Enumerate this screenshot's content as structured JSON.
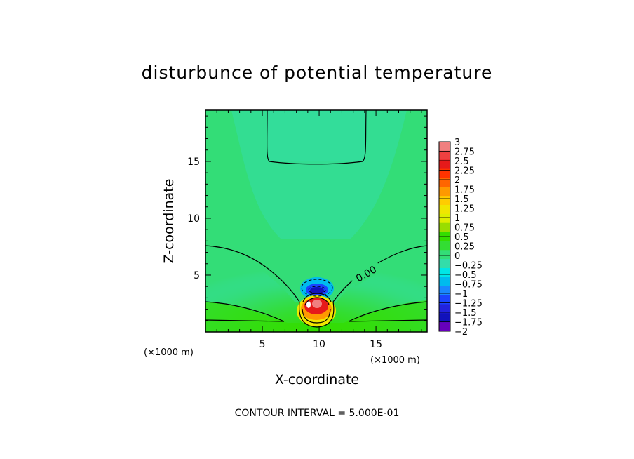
{
  "chart_data": {
    "type": "heatmap",
    "title": "disturbunce of potential temperature",
    "xlabel": "X-coordinate",
    "ylabel": "Z-coordinate",
    "x_unit": "(×1000 m)",
    "z_unit": "(×1000 m)",
    "xlim": [
      0,
      19.5
    ],
    "ylim": [
      0,
      19.5
    ],
    "x_ticks": [
      5,
      10,
      15
    ],
    "y_ticks": [
      5,
      10,
      15
    ],
    "contour_label": "0.00",
    "contour_interval_text": "CONTOUR INTERVAL = 5.000E-01",
    "colorbar": {
      "labels": [
        "3",
        "2.75",
        "2.5",
        "2.25",
        "2",
        "1.75",
        "1.5",
        "1.25",
        "1",
        "0.75",
        "0.5",
        "0.25",
        "0",
        "−0.25",
        "−0.5",
        "−0.75",
        "−1",
        "−1.25",
        "−1.5",
        "−1.75",
        "−2"
      ],
      "colors": [
        "#f08080",
        "#f04040",
        "#e61a1a",
        "#ff3300",
        "#ff6600",
        "#ff9900",
        "#ffcc00",
        "#f0e600",
        "#ddee00",
        "#99dd00",
        "#33dd00",
        "#33dd33",
        "#33dd77",
        "#33ddaa",
        "#00e6e6",
        "#00bbee",
        "#1a88ff",
        "#1a44ff",
        "#2222dd",
        "#1111bb",
        "#6600bb"
      ]
    }
  }
}
